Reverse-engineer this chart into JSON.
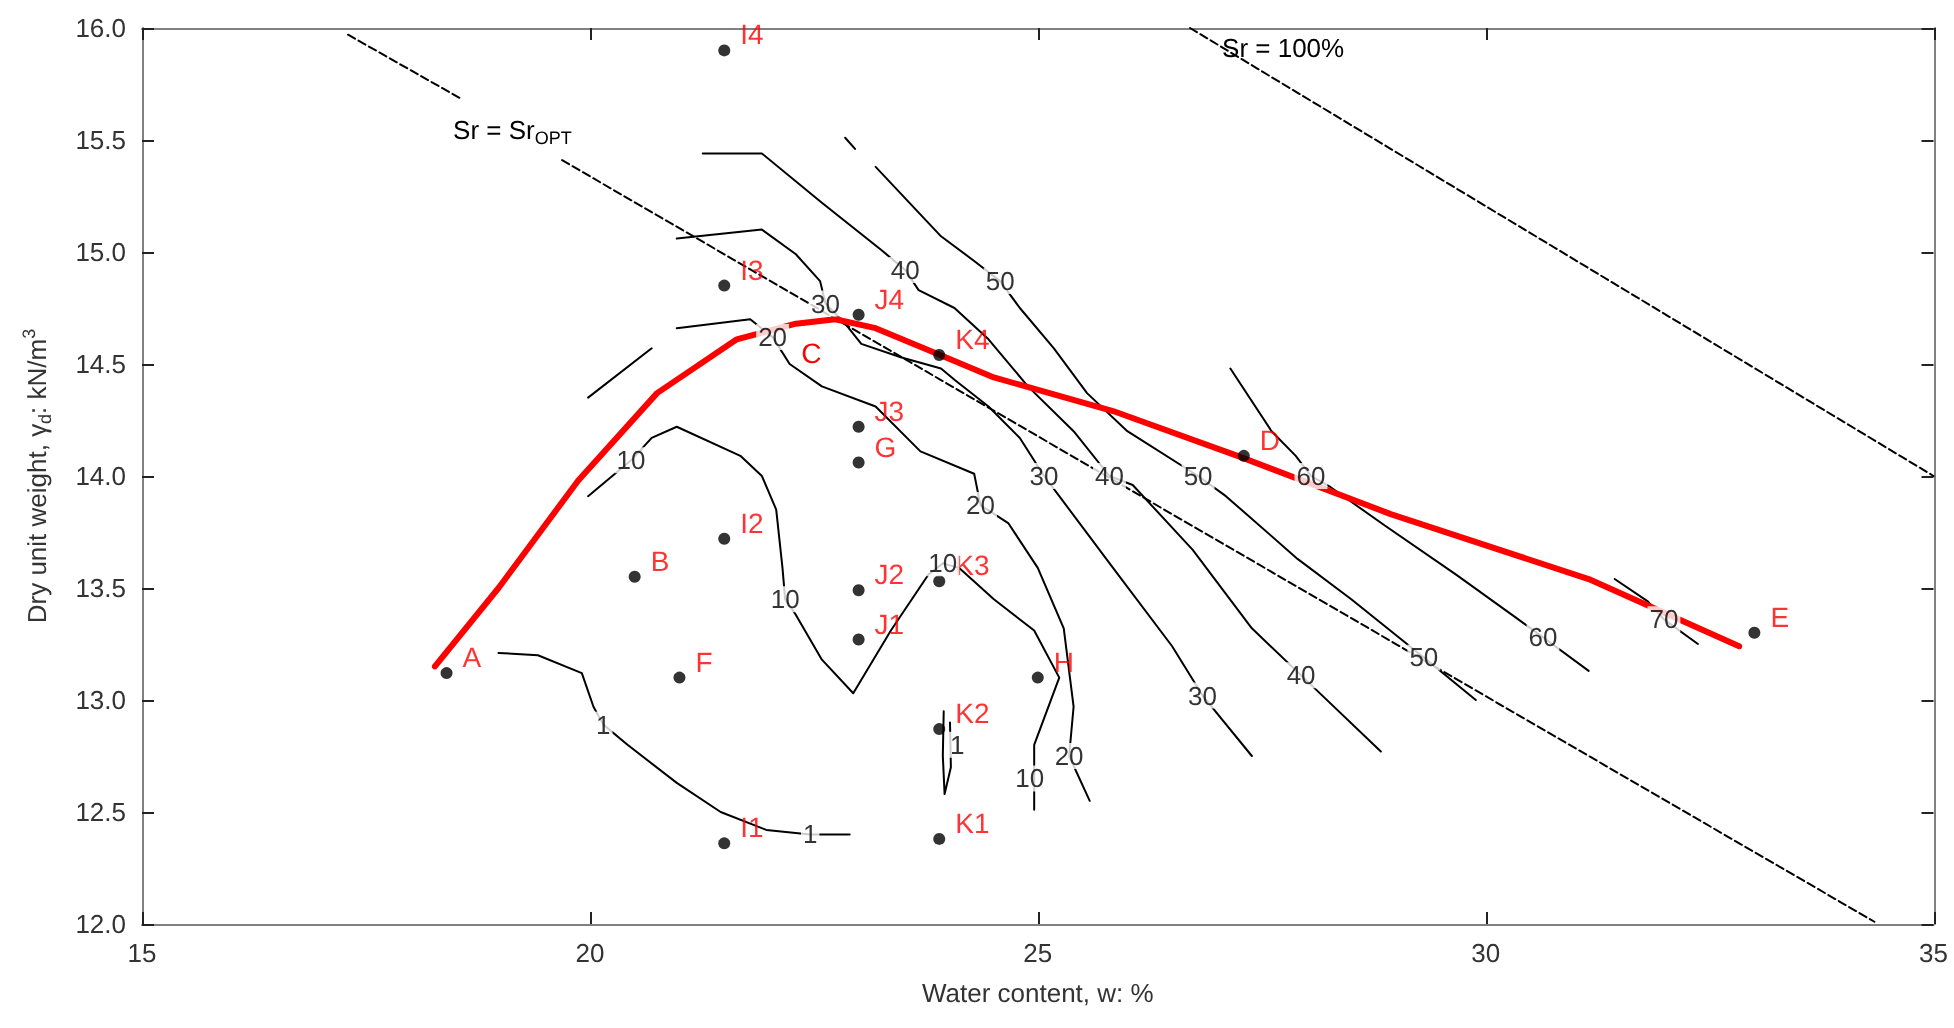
{
  "chart_data": {
    "type": "line",
    "xlabel": "Water content, w: %",
    "ylabel": "Dry unit weight, γ$_{d}$: kN/m$^{3}$",
    "xlim": [
      15,
      35
    ],
    "xticks": [
      15,
      20,
      25,
      30,
      35
    ],
    "ylim": [
      12,
      16
    ],
    "yticks": [
      {
        "value": 12,
        "label": "12.0"
      },
      {
        "value": 12.5,
        "label": "12.5"
      },
      {
        "value": 13,
        "label": "13.0"
      },
      {
        "value": 13.5,
        "label": "13.5"
      },
      {
        "value": 14,
        "label": "14.0"
      },
      {
        "value": 14.5,
        "label": "14.5"
      },
      {
        "value": 15,
        "label": "15.0"
      },
      {
        "value": 15.5,
        "label": "15.5"
      },
      {
        "value": 16,
        "label": "16.0"
      }
    ],
    "series": [
      {
        "color": "#000000",
        "marker": "none",
        "line_style": "solid",
        "x": [
          18.98,
          19.42,
          19.91,
          20.04,
          20.15,
          20.42,
          20.97,
          21.46,
          21.97,
          22.46,
          22.9
        ],
        "values": [
          13.21,
          13.2,
          13.12,
          12.97,
          12.89,
          12.8,
          12.63,
          12.5,
          12.42,
          12.4,
          12.4
        ]
      },
      {
        "color": "#000000",
        "marker": "none",
        "line_style": "solid",
        "x": [
          23.95,
          23.94,
          23.96,
          24.03,
          24.02
        ],
        "values": [
          12.95,
          12.75,
          12.58,
          12.7,
          12.9
        ]
      },
      {
        "color": "#000000",
        "marker": "none",
        "line_style": "solid",
        "x": [
          19.98,
          20.46,
          20.69,
          20.97,
          21.68,
          21.92,
          22.08,
          22.15,
          22.18,
          22.3,
          22.59,
          22.94,
          23.36,
          23.78,
          23.94,
          24.12,
          24.51,
          24.96,
          25.24,
          24.96,
          24.96
        ],
        "values": [
          13.91,
          14.07,
          14.17,
          14.22,
          14.09,
          14.0,
          13.85,
          13.59,
          13.45,
          13.38,
          13.18,
          13.03,
          13.31,
          13.56,
          13.61,
          13.59,
          13.45,
          13.31,
          13.1,
          12.8,
          12.51
        ]
      },
      {
        "color": "#000000",
        "marker": "none",
        "line_style": "solid",
        "x": [
          19.98,
          20.69,
          null,
          20.97,
          21.79,
          22.04,
          22.23,
          22.59,
          23.19,
          23.69,
          24.29,
          24.36,
          24.67,
          25.0,
          25.29,
          25.4,
          25.35,
          25.58
        ],
        "values": [
          14.35,
          14.57,
          null,
          14.66,
          14.7,
          14.62,
          14.5,
          14.4,
          14.31,
          14.11,
          14.01,
          13.87,
          13.79,
          13.59,
          13.32,
          12.97,
          12.75,
          12.55
        ]
      },
      {
        "color": "#000000",
        "marker": "none",
        "line_style": "solid",
        "x": [
          20.97,
          21.92,
          22.3,
          22.57,
          22.63,
          22.85,
          23.03,
          23.47,
          23.92,
          24.07,
          24.45,
          24.8,
          25.07,
          25.24,
          25.84,
          26.5,
          26.84,
          27.39
        ],
        "values": [
          15.06,
          15.1,
          14.99,
          14.87,
          14.77,
          14.68,
          14.59,
          14.53,
          14.48,
          14.43,
          14.31,
          14.17,
          14.0,
          13.91,
          13.59,
          13.24,
          13.02,
          12.75
        ]
      },
      {
        "color": "#000000",
        "marker": "none",
        "line_style": "solid",
        "x": [
          21.26,
          21.92,
          22.59,
          23.25,
          23.52,
          23.67,
          24.07,
          24.45,
          24.89,
          25.4,
          25.8,
          26.06,
          26.73,
          27.39,
          27.94,
          28.83
        ],
        "values": [
          15.44,
          15.44,
          15.22,
          15.01,
          14.92,
          14.83,
          14.75,
          14.61,
          14.4,
          14.2,
          14.0,
          13.96,
          13.67,
          13.32,
          13.11,
          12.77
        ]
      },
      {
        "color": "#000000",
        "marker": "none",
        "line_style": "solid",
        "x": [
          22.85,
          22.96,
          null,
          23.19,
          23.92,
          24.29,
          24.58,
          24.8,
          25.18,
          25.55,
          26.0,
          26.79,
          27.1,
          27.9,
          28.5,
          29.31,
          29.89
        ],
        "values": [
          15.51,
          15.46,
          null,
          15.38,
          15.07,
          14.96,
          14.87,
          14.75,
          14.57,
          14.37,
          14.2,
          14.0,
          13.91,
          13.63,
          13.45,
          13.19,
          13.0
        ]
      },
      {
        "color": "#000000",
        "marker": "none",
        "line_style": "solid",
        "x": [
          27.15,
          27.61,
          27.88,
          28.05,
          28.27,
          28.87,
          29.67,
          30.33,
          30.64,
          31.15
        ],
        "values": [
          14.48,
          14.2,
          14.09,
          14.0,
          13.95,
          13.78,
          13.56,
          13.37,
          13.28,
          13.13
        ]
      },
      {
        "color": "#000000",
        "marker": "none",
        "line_style": "solid",
        "x": [
          31.44,
          31.81,
          31.99,
          32.37
        ],
        "values": [
          13.54,
          13.44,
          13.36,
          13.25
        ]
      },
      {
        "name": "Sr = Sr$_{OPT}$",
        "color": "#000000",
        "marker": "none",
        "line_style": "dashed",
        "x": [
          17.3,
          18.58,
          null,
          19.69,
          34.34
        ],
        "values": [
          15.97,
          15.68,
          null,
          15.41,
          12.01
        ]
      },
      {
        "name": "Sr = 100%",
        "color": "#000000",
        "marker": "none",
        "line_style": "dashed",
        "x": [
          26.7,
          35.0
        ],
        "values": [
          16.0,
          14.0
        ]
      },
      {
        "color": "#ff0000",
        "marker": "none",
        "line_style": "solid",
        "x": [
          18.27,
          18.98,
          19.87,
          20.75,
          21.64,
          22.3,
          22.74,
          23.19,
          23.85,
          24.51,
          25.84,
          27.23,
          28.94,
          31.15,
          32.83
        ],
        "values": [
          13.15,
          13.5,
          13.98,
          14.37,
          14.61,
          14.68,
          14.7,
          14.66,
          14.55,
          14.44,
          14.29,
          14.09,
          13.83,
          13.54,
          13.24
        ],
        "value_labels": [
          null,
          null,
          null,
          null,
          null,
          null,
          "C",
          null,
          null,
          null,
          null,
          null,
          null,
          null,
          null
        ]
      },
      {
        "type": "scatter",
        "color": "#000000",
        "marker": "circle",
        "x": [
          18.4,
          20.5,
          21.0,
          21.5,
          21.5,
          21.5,
          21.5,
          23.0,
          23.0,
          23.0,
          23.0,
          23.0,
          23.9,
          23.9,
          23.9,
          23.9,
          25.0,
          27.3,
          33.0
        ],
        "values": [
          13.12,
          13.55,
          13.1,
          12.36,
          13.72,
          14.85,
          15.9,
          14.06,
          13.27,
          13.49,
          14.22,
          14.72,
          12.38,
          12.87,
          13.53,
          14.54,
          13.1,
          14.09,
          13.3
        ],
        "value_labels": [
          "A",
          "B",
          "F",
          "I1",
          "I2",
          "I3",
          "I4",
          "G",
          "J1",
          "J2",
          "J3",
          "J4",
          "K1",
          "K2",
          "K3",
          "K4",
          "H",
          "D",
          "E"
        ]
      }
    ],
    "annotations": [
      {
        "text": "1",
        "x": 20.15,
        "y": 12.89
      },
      {
        "text": "1",
        "x": 22.46,
        "y": 12.4
      },
      {
        "text": "1",
        "x": 24.1,
        "y": 12.8
      },
      {
        "text": "10",
        "x": 20.46,
        "y": 14.07
      },
      {
        "text": "10",
        "x": 22.18,
        "y": 13.45
      },
      {
        "text": "10",
        "x": 23.94,
        "y": 13.61
      },
      {
        "text": "10",
        "x": 24.91,
        "y": 12.65
      },
      {
        "text": "20",
        "x": 22.04,
        "y": 14.62
      },
      {
        "text": "20",
        "x": 24.36,
        "y": 13.87
      },
      {
        "text": "20",
        "x": 25.35,
        "y": 12.75
      },
      {
        "text": "30",
        "x": 22.63,
        "y": 14.77
      },
      {
        "text": "30",
        "x": 25.07,
        "y": 14.0
      },
      {
        "text": "30",
        "x": 26.84,
        "y": 13.02
      },
      {
        "text": "40",
        "x": 23.52,
        "y": 14.92
      },
      {
        "text": "40",
        "x": 25.8,
        "y": 14.0
      },
      {
        "text": "40",
        "x": 27.94,
        "y": 13.11
      },
      {
        "text": "50",
        "x": 24.58,
        "y": 14.87
      },
      {
        "text": "50",
        "x": 26.79,
        "y": 14.0
      },
      {
        "text": "50",
        "x": 29.31,
        "y": 13.19
      },
      {
        "text": "60",
        "x": 28.05,
        "y": 14.0
      },
      {
        "text": "60",
        "x": 30.64,
        "y": 13.28
      },
      {
        "text": "70",
        "x": 31.99,
        "y": 13.36
      }
    ]
  }
}
